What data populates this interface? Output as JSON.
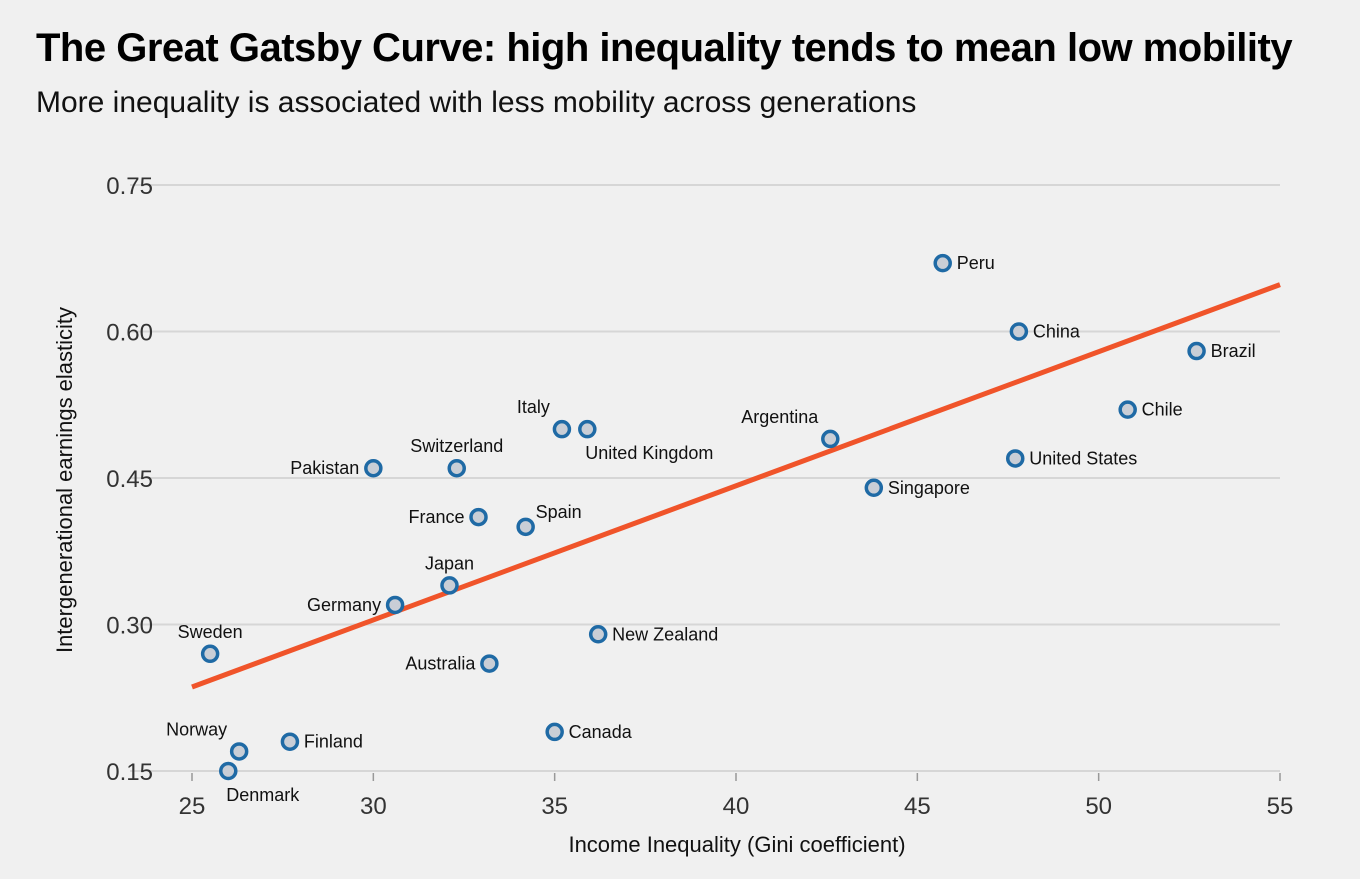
{
  "title": "The Great Gatsby Curve: high inequality tends to mean low mobility",
  "subtitle": "More inequality is associated with less mobility across generations",
  "chart_data": {
    "type": "scatter",
    "title": "The Great Gatsby Curve: high inequality tends to mean low mobility",
    "subtitle": "More inequality is associated with less mobility across generations",
    "xlabel": "Income Inequality (Gini coefficient)",
    "ylabel": "Intergenerational earnings elasticity",
    "xlim": [
      25,
      55
    ],
    "ylim": [
      0.15,
      0.75
    ],
    "xticks": [
      "25",
      "30",
      "35",
      "40",
      "45",
      "50",
      "55"
    ],
    "yticks": [
      "0.15",
      "0.30",
      "0.45",
      "0.60",
      "0.75"
    ],
    "grid": "horizontal",
    "colors": {
      "point_stroke": "#1f6aa5",
      "point_fill": "#c9ced6",
      "trend": "#f0542a",
      "grid": "#d6d6d6"
    },
    "points": [
      {
        "name": "Peru",
        "x": 45.7,
        "y": 0.67,
        "label_pos": "right"
      },
      {
        "name": "China",
        "x": 47.8,
        "y": 0.6,
        "label_pos": "right"
      },
      {
        "name": "Brazil",
        "x": 52.7,
        "y": 0.58,
        "label_pos": "right"
      },
      {
        "name": "Chile",
        "x": 50.8,
        "y": 0.52,
        "label_pos": "right"
      },
      {
        "name": "United States",
        "x": 47.7,
        "y": 0.47,
        "label_pos": "right"
      },
      {
        "name": "Argentina",
        "x": 42.6,
        "y": 0.49,
        "label_pos": "top-left"
      },
      {
        "name": "Singapore",
        "x": 43.8,
        "y": 0.44,
        "label_pos": "right"
      },
      {
        "name": "Italy",
        "x": 35.2,
        "y": 0.5,
        "label_pos": "top-left"
      },
      {
        "name": "United Kingdom",
        "x": 35.9,
        "y": 0.5,
        "label_pos": "bottom-right"
      },
      {
        "name": "Switzerland",
        "x": 32.3,
        "y": 0.46,
        "label_pos": "top"
      },
      {
        "name": "Pakistan",
        "x": 30.0,
        "y": 0.46,
        "label_pos": "left"
      },
      {
        "name": "France",
        "x": 32.9,
        "y": 0.41,
        "label_pos": "left"
      },
      {
        "name": "Spain",
        "x": 34.2,
        "y": 0.4,
        "label_pos": "top-right"
      },
      {
        "name": "Japan",
        "x": 32.1,
        "y": 0.34,
        "label_pos": "top"
      },
      {
        "name": "Germany",
        "x": 30.6,
        "y": 0.32,
        "label_pos": "left"
      },
      {
        "name": "New Zealand",
        "x": 36.2,
        "y": 0.29,
        "label_pos": "right"
      },
      {
        "name": "Australia",
        "x": 33.2,
        "y": 0.26,
        "label_pos": "left"
      },
      {
        "name": "Sweden",
        "x": 25.5,
        "y": 0.27,
        "label_pos": "top"
      },
      {
        "name": "Canada",
        "x": 35.0,
        "y": 0.19,
        "label_pos": "right"
      },
      {
        "name": "Finland",
        "x": 27.7,
        "y": 0.18,
        "label_pos": "right"
      },
      {
        "name": "Norway",
        "x": 26.3,
        "y": 0.17,
        "label_pos": "top-left"
      },
      {
        "name": "Denmark",
        "x": 26.0,
        "y": 0.15,
        "label_pos": "bottom-right"
      }
    ],
    "trend_line": {
      "x": [
        25,
        55
      ],
      "y": [
        0.236,
        0.648
      ]
    }
  }
}
